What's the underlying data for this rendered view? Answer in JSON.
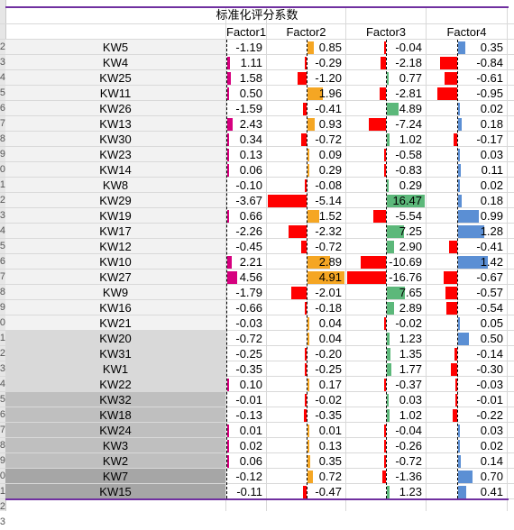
{
  "title": "标准化评分系数",
  "columns": [
    "Factor1",
    "Factor2",
    "Factor3",
    "Factor4"
  ],
  "row_numbers_visible": [
    "2",
    "3",
    "4",
    "5",
    "6",
    "7",
    "8",
    "9",
    "0",
    "1",
    "2",
    "3",
    "4",
    "5",
    "6",
    "7",
    "8",
    "9",
    "0",
    "1",
    "2",
    "3",
    "4",
    "5",
    "6",
    "7",
    "8",
    "9",
    "0",
    "1",
    "2",
    "3"
  ],
  "colors": {
    "factor1_bar": "#d6007f",
    "factor2_bar": "#f5a623",
    "factor3_bar": "#5cb87a",
    "factor4_bar": "#5b8fd4",
    "negative_bar": "#ff0000",
    "group_bg": [
      "#f2f2f2",
      "#d9d9d9",
      "#bfbfbf",
      "#a6a6a6"
    ],
    "separator": "#7030a0"
  },
  "rows": [
    {
      "kw": "KW5",
      "group": 0,
      "f1": "-1.19",
      "f2": "0.85",
      "f3": "-0.04",
      "f4": "0.35"
    },
    {
      "kw": "KW4",
      "group": 0,
      "f1": "1.11",
      "f2": "-0.29",
      "f3": "-2.18",
      "f4": "-0.84"
    },
    {
      "kw": "KW25",
      "group": 0,
      "f1": "1.58",
      "f2": "-1.20",
      "f3": "0.77",
      "f4": "-0.61"
    },
    {
      "kw": "KW11",
      "group": 0,
      "f1": "0.50",
      "f2": "1.96",
      "f3": "-2.81",
      "f4": "-0.95"
    },
    {
      "kw": "KW26",
      "group": 0,
      "f1": "-1.59",
      "f2": "-0.41",
      "f3": "4.89",
      "f4": "0.02"
    },
    {
      "kw": "KW13",
      "group": 0,
      "f1": "2.43",
      "f2": "0.93",
      "f3": "-7.24",
      "f4": "0.18"
    },
    {
      "kw": "KW30",
      "group": 0,
      "f1": "0.34",
      "f2": "-0.72",
      "f3": "1.02",
      "f4": "-0.17"
    },
    {
      "kw": "KW23",
      "group": 0,
      "f1": "0.13",
      "f2": "0.09",
      "f3": "-0.58",
      "f4": "0.03"
    },
    {
      "kw": "KW14",
      "group": 0,
      "f1": "0.06",
      "f2": "0.29",
      "f3": "-0.83",
      "f4": "0.11"
    },
    {
      "kw": "KW8",
      "group": 0,
      "f1": "-0.10",
      "f2": "-0.08",
      "f3": "0.29",
      "f4": "0.02"
    },
    {
      "kw": "KW29",
      "group": 0,
      "f1": "-3.67",
      "f2": "-5.14",
      "f3": "16.47",
      "f4": "0.18"
    },
    {
      "kw": "KW19",
      "group": 0,
      "f1": "0.66",
      "f2": "1.52",
      "f3": "-5.54",
      "f4": "0.99"
    },
    {
      "kw": "KW17",
      "group": 0,
      "f1": "-2.26",
      "f2": "-2.32",
      "f3": "7.25",
      "f4": "1.28"
    },
    {
      "kw": "KW12",
      "group": 0,
      "f1": "-0.45",
      "f2": "-0.72",
      "f3": "2.90",
      "f4": "-0.41"
    },
    {
      "kw": "KW10",
      "group": 0,
      "f1": "2.21",
      "f2": "2.89",
      "f3": "-10.69",
      "f4": "1.42"
    },
    {
      "kw": "KW27",
      "group": 0,
      "f1": "4.56",
      "f2": "4.91",
      "f3": "-16.76",
      "f4": "-0.67"
    },
    {
      "kw": "KW9",
      "group": 0,
      "f1": "-1.79",
      "f2": "-2.01",
      "f3": "7.65",
      "f4": "-0.57"
    },
    {
      "kw": "KW16",
      "group": 0,
      "f1": "-0.66",
      "f2": "-0.18",
      "f3": "2.89",
      "f4": "-0.54"
    },
    {
      "kw": "KW21",
      "group": 0,
      "f1": "-0.03",
      "f2": "0.04",
      "f3": "-0.02",
      "f4": "0.05"
    },
    {
      "kw": "KW20",
      "group": 1,
      "f1": "-0.72",
      "f2": "0.04",
      "f3": "1.23",
      "f4": "0.50"
    },
    {
      "kw": "KW31",
      "group": 1,
      "f1": "-0.25",
      "f2": "-0.20",
      "f3": "1.35",
      "f4": "-0.14"
    },
    {
      "kw": "KW1",
      "group": 1,
      "f1": "-0.35",
      "f2": "-0.25",
      "f3": "1.77",
      "f4": "-0.30"
    },
    {
      "kw": "KW22",
      "group": 1,
      "f1": "0.10",
      "f2": "0.17",
      "f3": "-0.37",
      "f4": "-0.03"
    },
    {
      "kw": "KW32",
      "group": 2,
      "f1": "-0.01",
      "f2": "-0.02",
      "f3": "0.03",
      "f4": "-0.01"
    },
    {
      "kw": "KW18",
      "group": 2,
      "f1": "-0.13",
      "f2": "-0.35",
      "f3": "1.02",
      "f4": "-0.22"
    },
    {
      "kw": "KW24",
      "group": 2,
      "f1": "0.01",
      "f2": "0.01",
      "f3": "-0.04",
      "f4": "0.03"
    },
    {
      "kw": "KW3",
      "group": 2,
      "f1": "0.02",
      "f2": "0.13",
      "f3": "-0.26",
      "f4": "0.02"
    },
    {
      "kw": "KW2",
      "group": 2,
      "f1": "0.06",
      "f2": "0.35",
      "f3": "-0.72",
      "f4": "0.14"
    },
    {
      "kw": "KW7",
      "group": 3,
      "f1": "-0.12",
      "f2": "0.72",
      "f3": "-1.36",
      "f4": "0.70"
    },
    {
      "kw": "KW15",
      "group": 3,
      "f1": "-0.11",
      "f2": "-0.47",
      "f3": "1.23",
      "f4": "0.41"
    }
  ]
}
